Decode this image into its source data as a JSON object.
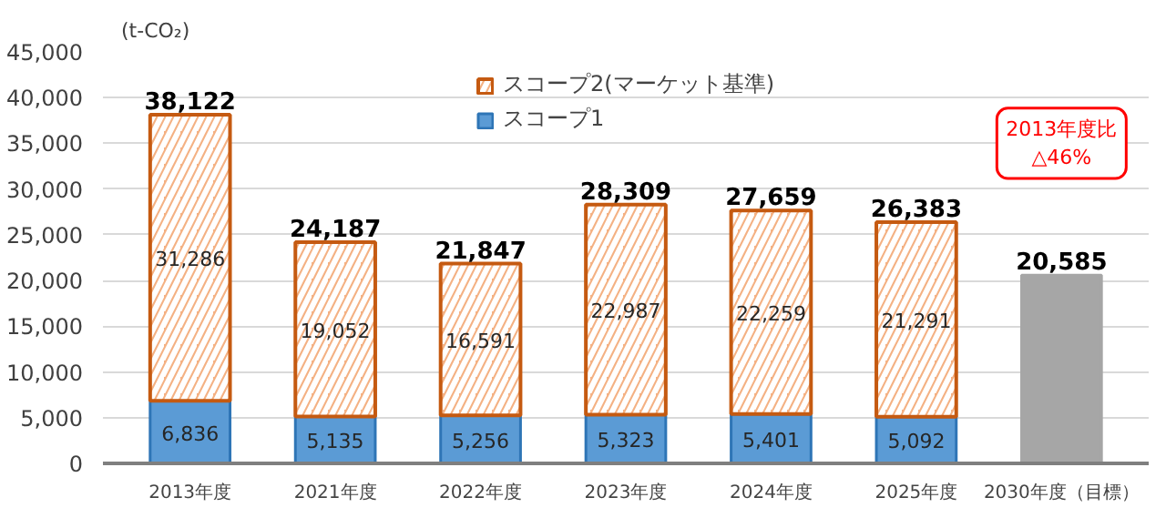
{
  "chart_data": {
    "type": "bar",
    "stacked": true,
    "ylabel": "(t-CO₂)",
    "categories": [
      "2013年度",
      "2021年度",
      "2022年度",
      "2023年度",
      "2024年度",
      "2025年度",
      "2030年度（目標）"
    ],
    "series": [
      {
        "name": "スコープ1",
        "color": "#5b9bd5",
        "values": [
          6836,
          5135,
          5256,
          5323,
          5401,
          5092,
          null
        ],
        "value_labels": [
          "6,836",
          "5,135",
          "5,256",
          "5,323",
          "5,401",
          "5,092",
          null
        ]
      },
      {
        "name": "スコープ2(マーケット基準)",
        "color": "#f4b183",
        "values": [
          31286,
          19052,
          16591,
          22987,
          22259,
          21291,
          null
        ],
        "value_labels": [
          "31,286",
          "19,052",
          "16,591",
          "22,987",
          "22,259",
          "21,291",
          null
        ]
      },
      {
        "color": "#a6a6a6",
        "values": [
          null,
          null,
          null,
          null,
          null,
          null,
          20585
        ]
      }
    ],
    "totals": [
      "38,122",
      "24,187",
      "21,847",
      "28,309",
      "27,659",
      "26,383",
      "20,585"
    ],
    "ylim": [
      0,
      45000
    ],
    "yticks": [
      0,
      {
        "value": 5000,
        "label": "5,000"
      },
      {
        "value": 10000,
        "label": "10,000"
      },
      {
        "value": 15000,
        "label": "15,000"
      },
      {
        "value": 20000,
        "label": "20,000"
      },
      {
        "value": 25000,
        "label": "25,000"
      },
      {
        "value": 30000,
        "label": "30,000"
      },
      {
        "value": 35000,
        "label": "35,000"
      },
      {
        "value": 40000,
        "label": "40,000"
      },
      {
        "value": 45000,
        "label": "45,000"
      }
    ],
    "grid": "y",
    "legend": "top",
    "annotations": [
      "2013年度比\n△46%"
    ]
  }
}
